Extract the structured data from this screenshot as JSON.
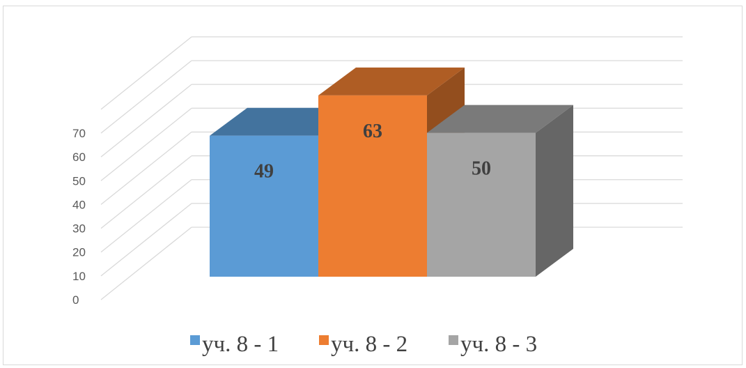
{
  "chart_data": {
    "type": "bar",
    "style": "3d-column",
    "categories": [
      ""
    ],
    "series": [
      {
        "name": "уч. 8 - 1",
        "values": [
          49
        ],
        "color": "#5b9bd5"
      },
      {
        "name": "уч. 8 - 2",
        "values": [
          63
        ],
        "color": "#ed7d31"
      },
      {
        "name": "уч. 8 - 3",
        "values": [
          50
        ],
        "color": "#a5a5a5"
      }
    ],
    "data_labels": [
      "49",
      "63",
      "50"
    ],
    "y_ticks": [
      "0",
      "10",
      "20",
      "30",
      "40",
      "50",
      "60",
      "70"
    ],
    "ylim": [
      0,
      70
    ],
    "grid": true,
    "legend": "bottom",
    "title": "",
    "xlabel": "",
    "ylabel": ""
  }
}
